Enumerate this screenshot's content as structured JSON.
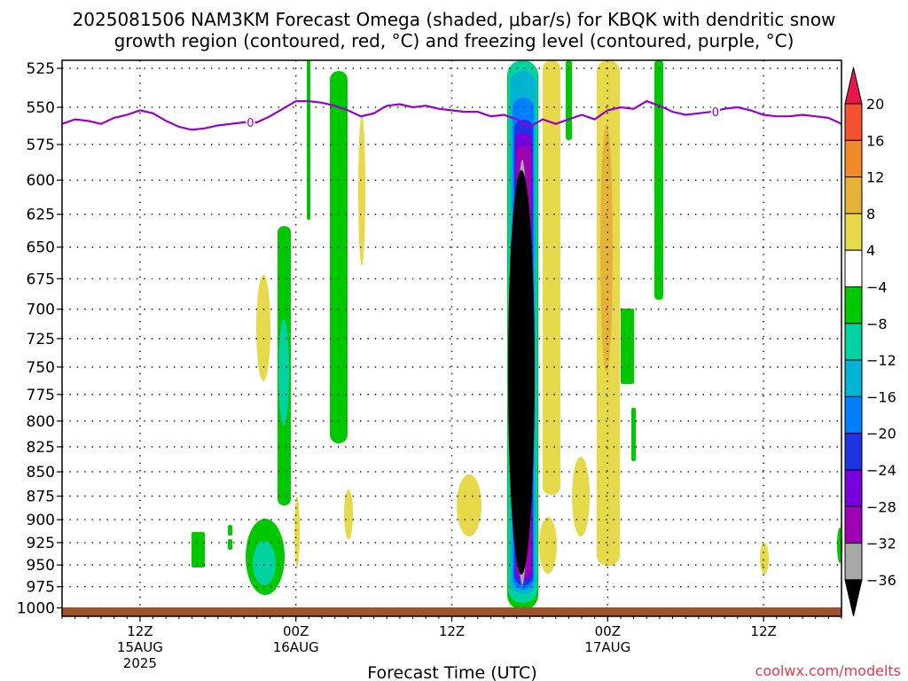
{
  "chart_data": {
    "type": "heatmap",
    "title_line1": "2025081506 NAM3KM Forecast Omega (shaded, μbar/s) for KBQK with dendritic snow",
    "title_line2": "growth region (contoured, red, °C) and freezing level (contoured, purple, °C)",
    "xlabel": "Forecast Time (UTC)",
    "ylabel": "",
    "y_scale": "pressure (hPa), log, inverted",
    "y_ticks": [
      525,
      550,
      575,
      600,
      625,
      650,
      675,
      700,
      725,
      750,
      775,
      800,
      825,
      850,
      875,
      900,
      925,
      950,
      975,
      1000
    ],
    "ylim": [
      1010,
      520
    ],
    "x_ticks": [
      {
        "hour": 12,
        "label": "12Z",
        "sub1": "15AUG",
        "sub2": "2025"
      },
      {
        "hour": 24,
        "label": "00Z",
        "sub1": "16AUG",
        "sub2": ""
      },
      {
        "hour": 36,
        "label": "12Z",
        "sub1": "",
        "sub2": ""
      },
      {
        "hour": 48,
        "label": "00Z",
        "sub1": "17AUG",
        "sub2": ""
      },
      {
        "hour": 60,
        "label": "12Z",
        "sub1": "",
        "sub2": ""
      }
    ],
    "xlim_hours_since_2025081506": [
      6,
      66
    ],
    "grid": true,
    "colorbar": {
      "levels": [
        20,
        16,
        12,
        8,
        4,
        -4,
        -8,
        -12,
        -16,
        -20,
        -24,
        -28,
        -32,
        -36
      ],
      "labels": [
        "20",
        "16",
        "12",
        "8",
        "4",
        "−4",
        "−8",
        "−12",
        "−16",
        "−20",
        "−24",
        "−28",
        "−32",
        "−36"
      ],
      "colors": [
        "#e8174e",
        "#f25230",
        "#f08a2a",
        "#e6b33a",
        "#e6d94a",
        "#ffffff",
        "#00c800",
        "#00d2a0",
        "#00b4d2",
        "#0080ff",
        "#1e32e6",
        "#7800dc",
        "#a000b4",
        "#a8a8a8",
        "#000000"
      ]
    },
    "freezing_level": {
      "label": "0",
      "color": "#9900cc",
      "x_hours": [
        6,
        7,
        8,
        9,
        10,
        11,
        12,
        13,
        14,
        15,
        16,
        17,
        18,
        19,
        20,
        21,
        22,
        23,
        24,
        25,
        26,
        27,
        28,
        29,
        30,
        31,
        32,
        33,
        34,
        35,
        36,
        37,
        38,
        39,
        40,
        41,
        42,
        43,
        44,
        45,
        46,
        47,
        48,
        49,
        50,
        51,
        52,
        53,
        54,
        55,
        56,
        57,
        58,
        59,
        60,
        61,
        62,
        63,
        64,
        65,
        66
      ],
      "pressure": [
        561,
        558,
        559,
        561,
        557,
        555,
        552,
        554,
        559,
        563,
        565,
        564,
        562,
        561,
        560,
        560,
        556,
        551,
        546,
        546,
        547,
        549,
        552,
        556,
        554,
        549,
        548,
        550,
        549,
        551,
        552,
        553,
        553,
        556,
        555,
        558,
        563,
        558,
        561,
        558,
        555,
        558,
        552,
        550,
        551,
        546,
        549,
        553,
        555,
        554,
        553,
        551,
        550,
        552,
        555,
        556,
        556,
        555,
        556,
        557,
        561
      ]
    },
    "omega_features": [
      {
        "name": "main-updraft-core",
        "center_hour": 41.5,
        "p_top": 520,
        "p_bottom": 1005,
        "min_omega": -40
      },
      {
        "name": "descent-band-47z",
        "center_hour": 47.8,
        "p_top": 520,
        "p_bottom": 930,
        "max_omega": 10
      },
      {
        "name": "ascent-band-16aug-00z",
        "center_hour": 23.5,
        "p_top": 640,
        "p_bottom": 890,
        "min_omega": -14
      },
      {
        "name": "ascent-band-16aug-03z",
        "center_hour": 26.5,
        "p_top": 530,
        "p_bottom": 830,
        "min_omega": -8
      }
    ],
    "dgz_contour_color": "#dd2222",
    "ground_color": "#a0522d"
  },
  "credit": "coolwx.com/modelts"
}
